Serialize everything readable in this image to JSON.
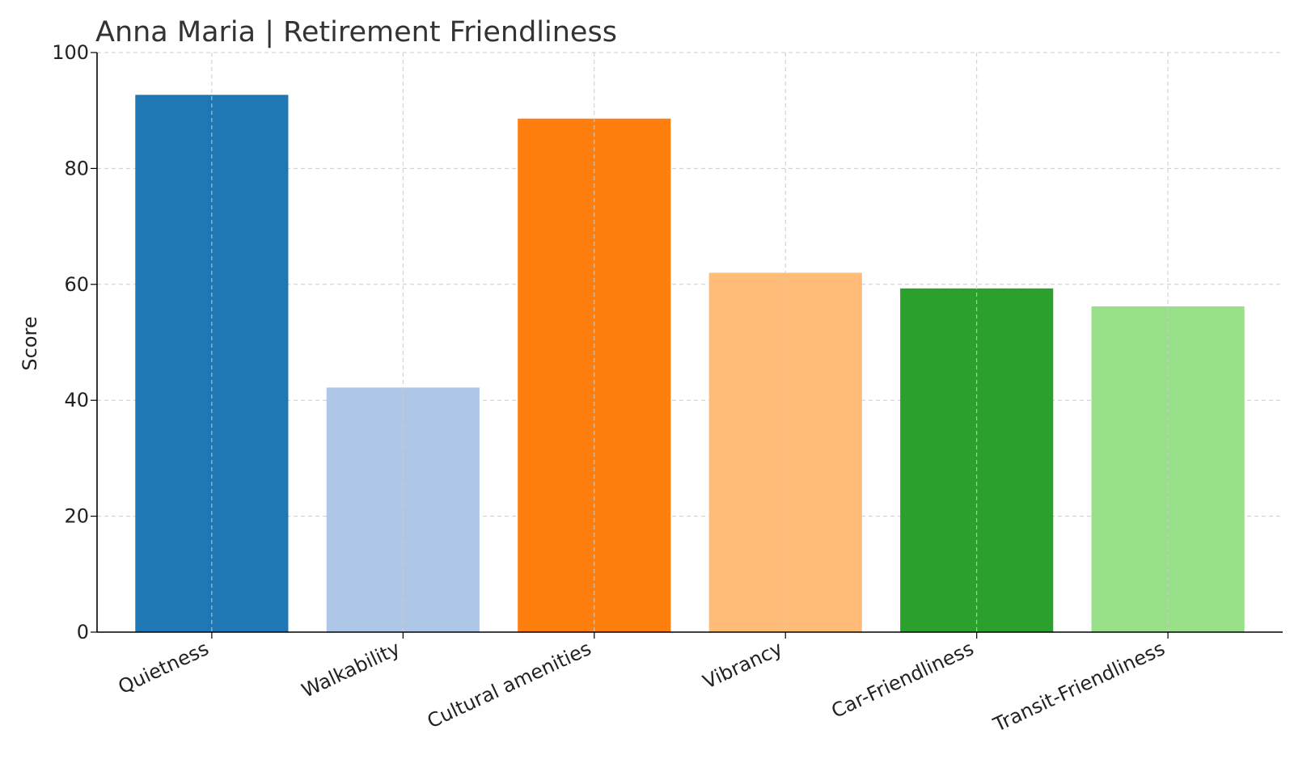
{
  "chart_data": {
    "type": "bar",
    "title": "Anna Maria | Retirement Friendliness",
    "xlabel": "",
    "ylabel": "Score",
    "ylim": [
      0,
      100
    ],
    "yticks": [
      0,
      20,
      40,
      60,
      80,
      100
    ],
    "grid": true,
    "categories": [
      "Quietness",
      "Walkability",
      "Cultural amenities",
      "Vibrancy",
      "Car-Friendliness",
      "Transit-Friendliness"
    ],
    "values": [
      92.7,
      42.2,
      88.6,
      62.0,
      59.3,
      56.2
    ],
    "colors": [
      "#1f77b4",
      "#aec7e8",
      "#ff7f0e",
      "#ffbb78",
      "#2ca02c",
      "#98df8a"
    ]
  }
}
